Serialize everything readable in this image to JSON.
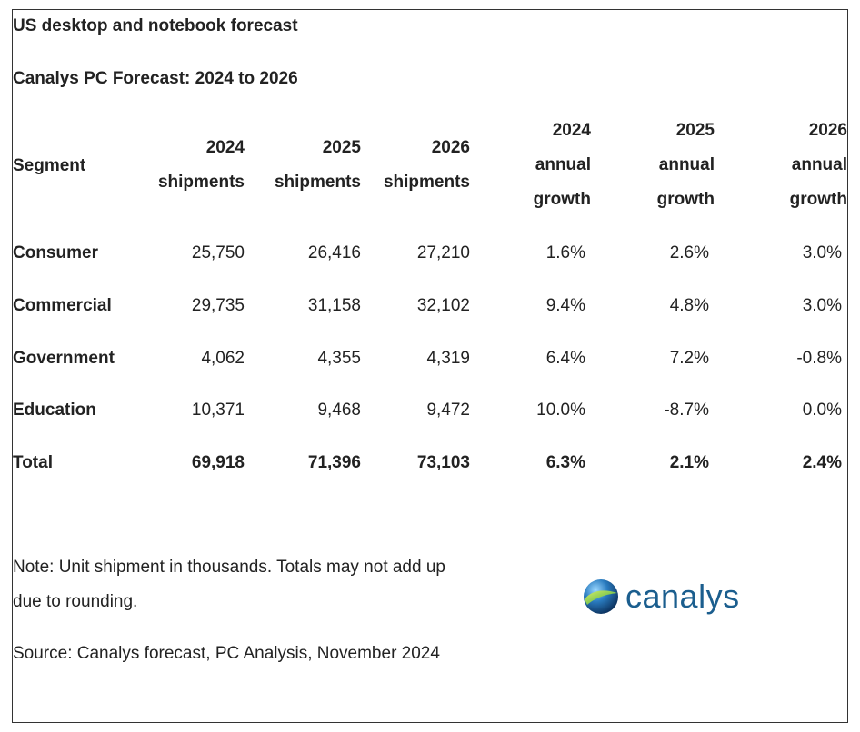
{
  "title": "US desktop and notebook forecast",
  "subtitle": "Canalys PC Forecast: 2024 to 2026",
  "chart_data": {
    "type": "table",
    "title": "Canalys PC Forecast: 2024 to 2026",
    "columns": [
      {
        "key": "segment",
        "lines": [
          "Segment"
        ]
      },
      {
        "key": "s2024",
        "lines": [
          "2024",
          "shipments"
        ]
      },
      {
        "key": "s2025",
        "lines": [
          "2025",
          "shipments"
        ]
      },
      {
        "key": "s2026",
        "lines": [
          "2026",
          "shipments"
        ]
      },
      {
        "key": "g2024",
        "lines": [
          "2024",
          "annual",
          "growth"
        ]
      },
      {
        "key": "g2025",
        "lines": [
          "2025",
          "annual",
          "growth"
        ]
      },
      {
        "key": "g2026",
        "lines": [
          "2026",
          "annual",
          "growth"
        ]
      }
    ],
    "rows": [
      {
        "segment": "Consumer",
        "s2024": "25,750",
        "s2025": "26,416",
        "s2026": "27,210",
        "g2024": "1.6%",
        "g2025": "2.6%",
        "g2026": "3.0%"
      },
      {
        "segment": "Commercial",
        "s2024": "29,735",
        "s2025": "31,158",
        "s2026": "32,102",
        "g2024": "9.4%",
        "g2025": "4.8%",
        "g2026": "3.0%"
      },
      {
        "segment": "Government",
        "s2024": "4,062",
        "s2025": "4,355",
        "s2026": "4,319",
        "g2024": "6.4%",
        "g2025": "7.2%",
        "g2026": "-0.8%"
      },
      {
        "segment": "Education",
        "s2024": "10,371",
        "s2025": "9,468",
        "s2026": "9,472",
        "g2024": "10.0%",
        "g2025": "-8.7%",
        "g2026": "0.0%"
      },
      {
        "segment": "Total",
        "s2024": "69,918",
        "s2025": "71,396",
        "s2026": "73,103",
        "g2024": "6.3%",
        "g2025": "2.1%",
        "g2026": "2.4%",
        "bold": true
      }
    ],
    "units": "thousands"
  },
  "note": "Note: Unit shipment in thousands. Totals may not add up due to rounding.",
  "source": "Source: Canalys forecast, PC Analysis, November 2024",
  "logo": {
    "text": "canalys",
    "icon": "globe-icon",
    "color": "#1b5e8e"
  }
}
